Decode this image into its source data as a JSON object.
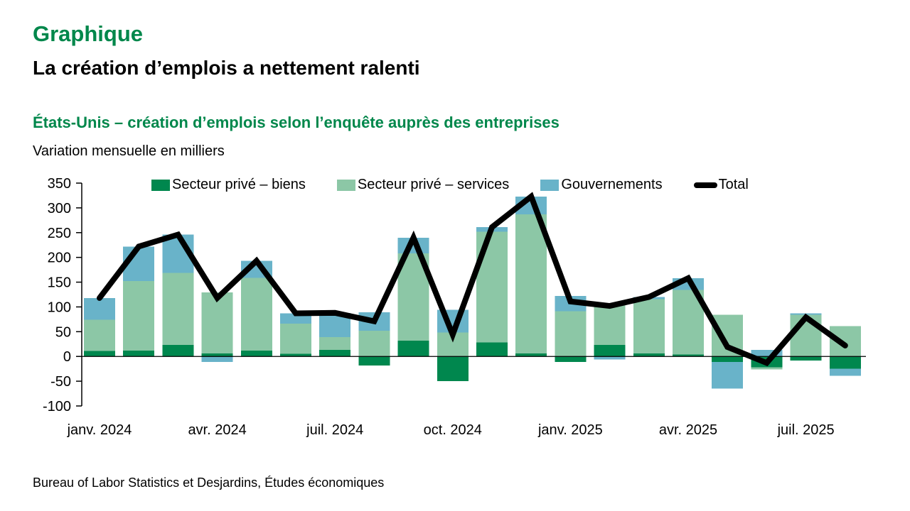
{
  "page": {
    "kicker": "Graphique",
    "title": "La création d’emplois a nettement ralenti",
    "subtitle": "États-Unis – création d’emplois selon l’enquête auprès des entreprises",
    "units_label": "Variation mensuelle en milliers",
    "source": "Bureau of Labor Statistics et Desjardins, Études économiques"
  },
  "colors": {
    "accent_green": "#00874B",
    "goods": "#00874E",
    "services": "#8CC7A6",
    "government": "#69B3C9",
    "total_line": "#000000"
  },
  "chart_data": {
    "type": "bar",
    "stacked": true,
    "title": "États-Unis – création d’emplois selon l’enquête auprès des entreprises",
    "ylabel": "Variation mensuelle en milliers",
    "xlabel": "",
    "ylim": [
      -100,
      350
    ],
    "ytick_step": 50,
    "grid": false,
    "legend_position": "top",
    "categories": [
      "janv. 2024",
      "févr. 2024",
      "mars 2024",
      "avr. 2024",
      "mai 2024",
      "juin 2024",
      "juil. 2024",
      "août 2024",
      "sept. 2024",
      "oct. 2024",
      "nov. 2024",
      "déc. 2024",
      "janv. 2025",
      "févr. 2025",
      "mars 2025",
      "avr. 2025",
      "mai 2025",
      "juin 2025",
      "juil. 2025",
      "août 2025"
    ],
    "x_tick_labels": [
      "janv. 2024",
      "avr. 2024",
      "juil. 2024",
      "oct. 2024",
      "janv. 2025",
      "avr. 2025",
      "juil. 2025"
    ],
    "x_tick_every": 3,
    "series": [
      {
        "name": "Secteur privé – biens",
        "render": "bar",
        "color_key": "goods",
        "values": [
          11,
          12,
          23,
          6,
          12,
          5,
          13,
          -18,
          32,
          -50,
          28,
          6,
          -11,
          23,
          6,
          4,
          -11,
          -22,
          -8,
          -25
        ]
      },
      {
        "name": "Secteur privé – services",
        "render": "bar",
        "color_key": "services",
        "values": [
          63,
          140,
          146,
          123,
          147,
          61,
          26,
          52,
          176,
          48,
          224,
          281,
          91,
          85,
          110,
          130,
          84,
          -4,
          84,
          61
        ]
      },
      {
        "name": "Gouvernements",
        "render": "bar",
        "color_key": "government",
        "values": [
          44,
          70,
          77,
          -11,
          34,
          21,
          49,
          37,
          32,
          46,
          9,
          36,
          31,
          -6,
          4,
          24,
          -54,
          13,
          3,
          -14
        ]
      },
      {
        "name": "Total",
        "render": "line",
        "color_key": "total_line",
        "values": [
          118,
          222,
          246,
          118,
          193,
          87,
          88,
          71,
          240,
          44,
          261,
          323,
          111,
          102,
          120,
          158,
          19,
          -13,
          79,
          22
        ]
      }
    ]
  }
}
